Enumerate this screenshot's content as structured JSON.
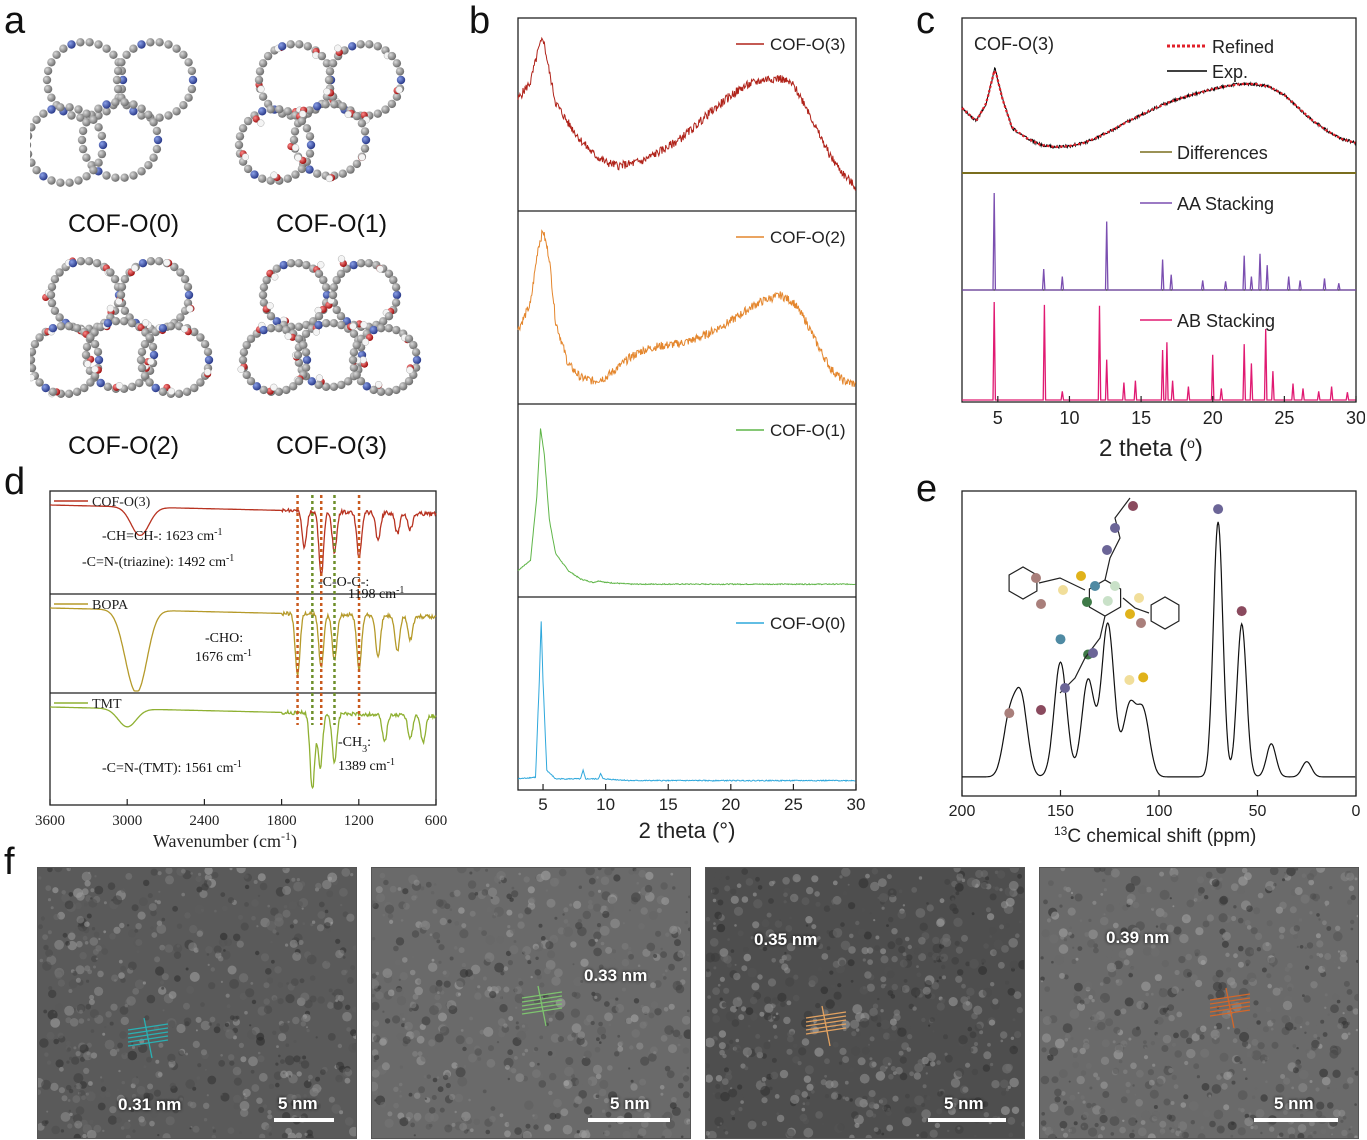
{
  "panels": {
    "a": "a",
    "b": "b",
    "c": "c",
    "d": "d",
    "e": "e",
    "f": "f"
  },
  "molecules": [
    "COF-O(0)",
    "COF-O(1)",
    "COF-O(2)",
    "COF-O(3)"
  ],
  "chart_data": [
    {
      "id": "b",
      "type": "line",
      "xlabel": "2 theta (°)",
      "xlim": [
        3,
        30
      ],
      "xticks": [
        5,
        10,
        15,
        20,
        25,
        30
      ],
      "series": [
        {
          "name": "COF-O(3)",
          "color": "#b0231a",
          "points": [
            [
              3,
              0.62
            ],
            [
              4,
              0.72
            ],
            [
              4.6,
              0.9
            ],
            [
              5,
              0.98
            ],
            [
              5.5,
              0.78
            ],
            [
              6,
              0.6
            ],
            [
              7,
              0.48
            ],
            [
              8,
              0.38
            ],
            [
              9,
              0.3
            ],
            [
              10,
              0.25
            ],
            [
              11,
              0.23
            ],
            [
              12,
              0.24
            ],
            [
              13,
              0.26
            ],
            [
              14,
              0.3
            ],
            [
              15,
              0.34
            ],
            [
              16,
              0.39
            ],
            [
              17,
              0.45
            ],
            [
              18,
              0.52
            ],
            [
              19,
              0.58
            ],
            [
              20,
              0.64
            ],
            [
              21,
              0.69
            ],
            [
              22,
              0.72
            ],
            [
              23,
              0.74
            ],
            [
              24,
              0.74
            ],
            [
              25,
              0.7
            ],
            [
              26,
              0.58
            ],
            [
              27,
              0.42
            ],
            [
              28,
              0.28
            ],
            [
              29,
              0.18
            ],
            [
              30,
              0.1
            ]
          ]
        },
        {
          "name": "COF-O(2)",
          "color": "#e4862d",
          "points": [
            [
              3,
              0.4
            ],
            [
              4,
              0.55
            ],
            [
              4.6,
              0.88
            ],
            [
              5,
              0.98
            ],
            [
              5.5,
              0.82
            ],
            [
              6,
              0.45
            ],
            [
              7,
              0.2
            ],
            [
              8,
              0.12
            ],
            [
              9,
              0.1
            ],
            [
              10,
              0.12
            ],
            [
              11,
              0.18
            ],
            [
              12,
              0.24
            ],
            [
              13,
              0.28
            ],
            [
              14,
              0.3
            ],
            [
              15,
              0.31
            ],
            [
              16,
              0.32
            ],
            [
              17,
              0.34
            ],
            [
              18,
              0.37
            ],
            [
              19,
              0.41
            ],
            [
              20,
              0.45
            ],
            [
              21,
              0.5
            ],
            [
              22,
              0.55
            ],
            [
              23,
              0.58
            ],
            [
              24,
              0.6
            ],
            [
              25,
              0.56
            ],
            [
              26,
              0.45
            ],
            [
              27,
              0.3
            ],
            [
              28,
              0.17
            ],
            [
              29,
              0.1
            ],
            [
              30,
              0.08
            ]
          ]
        },
        {
          "name": "COF-O(1)",
          "color": "#5fb548",
          "points": [
            [
              3,
              0.12
            ],
            [
              4,
              0.18
            ],
            [
              4.5,
              0.55
            ],
            [
              4.8,
              0.95
            ],
            [
              5.1,
              0.8
            ],
            [
              5.5,
              0.42
            ],
            [
              6,
              0.22
            ],
            [
              7,
              0.12
            ],
            [
              8,
              0.07
            ],
            [
              9,
              0.05
            ],
            [
              9.5,
              0.06
            ],
            [
              10,
              0.05
            ],
            [
              12,
              0.04
            ],
            [
              15,
              0.04
            ],
            [
              20,
              0.04
            ],
            [
              25,
              0.04
            ],
            [
              30,
              0.04
            ]
          ]
        },
        {
          "name": "COF-O(0)",
          "color": "#2fa8dc",
          "points": [
            [
              3,
              0.03
            ],
            [
              4.4,
              0.04
            ],
            [
              4.7,
              0.6
            ],
            [
              4.85,
              0.95
            ],
            [
              5.0,
              0.6
            ],
            [
              5.3,
              0.08
            ],
            [
              6,
              0.03
            ],
            [
              8,
              0.03
            ],
            [
              8.2,
              0.08
            ],
            [
              8.4,
              0.03
            ],
            [
              9.4,
              0.03
            ],
            [
              9.6,
              0.06
            ],
            [
              9.8,
              0.03
            ],
            [
              12,
              0.02
            ],
            [
              20,
              0.02
            ],
            [
              30,
              0.02
            ]
          ]
        }
      ]
    },
    {
      "id": "c",
      "type": "line",
      "xlabel": "2 theta (o)",
      "xlim": [
        2.5,
        30
      ],
      "xticks": [
        5,
        10,
        15,
        20,
        25,
        30
      ],
      "legend": [
        {
          "name": "Refined",
          "color": "#e0202a"
        },
        {
          "name": "Exp.",
          "color": "#000000"
        },
        {
          "name": "Differences",
          "color": "#7a6e1e"
        },
        {
          "name": "AA Stacking",
          "color": "#7b4fb0"
        },
        {
          "name": "AB Stacking",
          "color": "#e01a72"
        }
      ],
      "sample": "COF-O(3)",
      "refined_points": [
        [
          2.5,
          0.55
        ],
        [
          3.5,
          0.42
        ],
        [
          4.2,
          0.6
        ],
        [
          4.8,
          0.95
        ],
        [
          5.3,
          0.65
        ],
        [
          6,
          0.35
        ],
        [
          7,
          0.25
        ],
        [
          8,
          0.18
        ],
        [
          9,
          0.16
        ],
        [
          10,
          0.17
        ],
        [
          11,
          0.2
        ],
        [
          12,
          0.26
        ],
        [
          13,
          0.33
        ],
        [
          14,
          0.41
        ],
        [
          15,
          0.48
        ],
        [
          16,
          0.55
        ],
        [
          17,
          0.61
        ],
        [
          18,
          0.66
        ],
        [
          19,
          0.7
        ],
        [
          20,
          0.74
        ],
        [
          21,
          0.77
        ],
        [
          22,
          0.79
        ],
        [
          23,
          0.79
        ],
        [
          24,
          0.76
        ],
        [
          25,
          0.68
        ],
        [
          26,
          0.55
        ],
        [
          27,
          0.42
        ],
        [
          28,
          0.32
        ],
        [
          29,
          0.24
        ],
        [
          30,
          0.2
        ]
      ],
      "aa_peaks": [
        [
          4.75,
          1.0
        ],
        [
          8.2,
          0.2
        ],
        [
          9.5,
          0.12
        ],
        [
          12.6,
          0.7
        ],
        [
          16.5,
          0.3
        ],
        [
          17.1,
          0.14
        ],
        [
          19.3,
          0.08
        ],
        [
          20.9,
          0.07
        ],
        [
          22.2,
          0.34
        ],
        [
          22.7,
          0.12
        ],
        [
          23.3,
          0.36
        ],
        [
          23.8,
          0.24
        ],
        [
          25.3,
          0.12
        ],
        [
          26.1,
          0.08
        ],
        [
          27.8,
          0.1
        ],
        [
          28.8,
          0.05
        ]
      ],
      "ab_peaks": [
        [
          4.75,
          1.0
        ],
        [
          8.25,
          0.97
        ],
        [
          9.5,
          0.07
        ],
        [
          12.1,
          0.96
        ],
        [
          12.6,
          0.4
        ],
        [
          13.8,
          0.16
        ],
        [
          14.6,
          0.18
        ],
        [
          16.5,
          0.5
        ],
        [
          16.8,
          0.58
        ],
        [
          17.2,
          0.18
        ],
        [
          18.3,
          0.12
        ],
        [
          20.0,
          0.45
        ],
        [
          20.6,
          0.1
        ],
        [
          22.2,
          0.56
        ],
        [
          22.7,
          0.36
        ],
        [
          23.7,
          0.72
        ],
        [
          24.2,
          0.28
        ],
        [
          25.6,
          0.15
        ],
        [
          26.3,
          0.1
        ],
        [
          27.4,
          0.07
        ],
        [
          28.3,
          0.12
        ],
        [
          29.4,
          0.06
        ]
      ]
    },
    {
      "id": "d",
      "type": "line",
      "xlabel": "Wavenumber (cm",
      "xlabel_sup": "-1",
      "xlabel_end": ")",
      "xlim": [
        3600,
        600
      ],
      "xticks": [
        3600,
        3000,
        2400,
        1800,
        1200,
        600
      ],
      "series": [
        {
          "name": "COF-O(3)",
          "color": "#b83321"
        },
        {
          "name": "BOPA",
          "color": "#b59a2a"
        },
        {
          "name": "TMT",
          "color": "#8fb032"
        }
      ],
      "annotations": [
        {
          "text": "-CH=CH-: 1623 cm",
          "sup": "-1"
        },
        {
          "text": "-C=N-(triazine): 1492 cm",
          "sup": "-1"
        },
        {
          "text": "-C-O-C-:",
          "sup": ""
        },
        {
          "text": "1198 cm",
          "sup": "-1"
        },
        {
          "text": "-CHO:",
          "sup": ""
        },
        {
          "text": "1676 cm",
          "sup": "-1"
        },
        {
          "text": "-C=N-(TMT): 1561 cm",
          "sup": "-1"
        },
        {
          "text": "-CH",
          "sub": "3",
          "end": ":"
        },
        {
          "text": "1389 cm",
          "sup": "-1"
        }
      ],
      "marker_lines": [
        {
          "x": 1676,
          "color": "#c95a1e"
        },
        {
          "x": 1561,
          "color": "#6e8f2a"
        },
        {
          "x": 1492,
          "color": "#c95a1e"
        },
        {
          "x": 1389,
          "color": "#6e8f2a"
        },
        {
          "x": 1198,
          "color": "#c95a1e"
        }
      ]
    },
    {
      "id": "e",
      "type": "line",
      "xlabel": "C chemical shift (ppm)",
      "xlabel_sup": "13",
      "xlim": [
        200,
        0
      ],
      "xticks": [
        200,
        150,
        100,
        50,
        0
      ],
      "peaks": [
        [
          176,
          0.22
        ],
        [
          170,
          0.3
        ],
        [
          150,
          0.45
        ],
        [
          136,
          0.38
        ],
        [
          126,
          0.6
        ],
        [
          115,
          0.27
        ],
        [
          108,
          0.25
        ],
        [
          70,
          1.0
        ],
        [
          58,
          0.6
        ],
        [
          43,
          0.13
        ],
        [
          25,
          0.06
        ]
      ]
    }
  ],
  "tem": [
    {
      "spacing": "0.31 nm",
      "scale": "5 nm"
    },
    {
      "spacing": "0.33 nm",
      "scale": "5 nm"
    },
    {
      "spacing": "0.35 nm",
      "scale": "5 nm"
    },
    {
      "spacing": "0.39 nm",
      "scale": "5 nm"
    }
  ]
}
